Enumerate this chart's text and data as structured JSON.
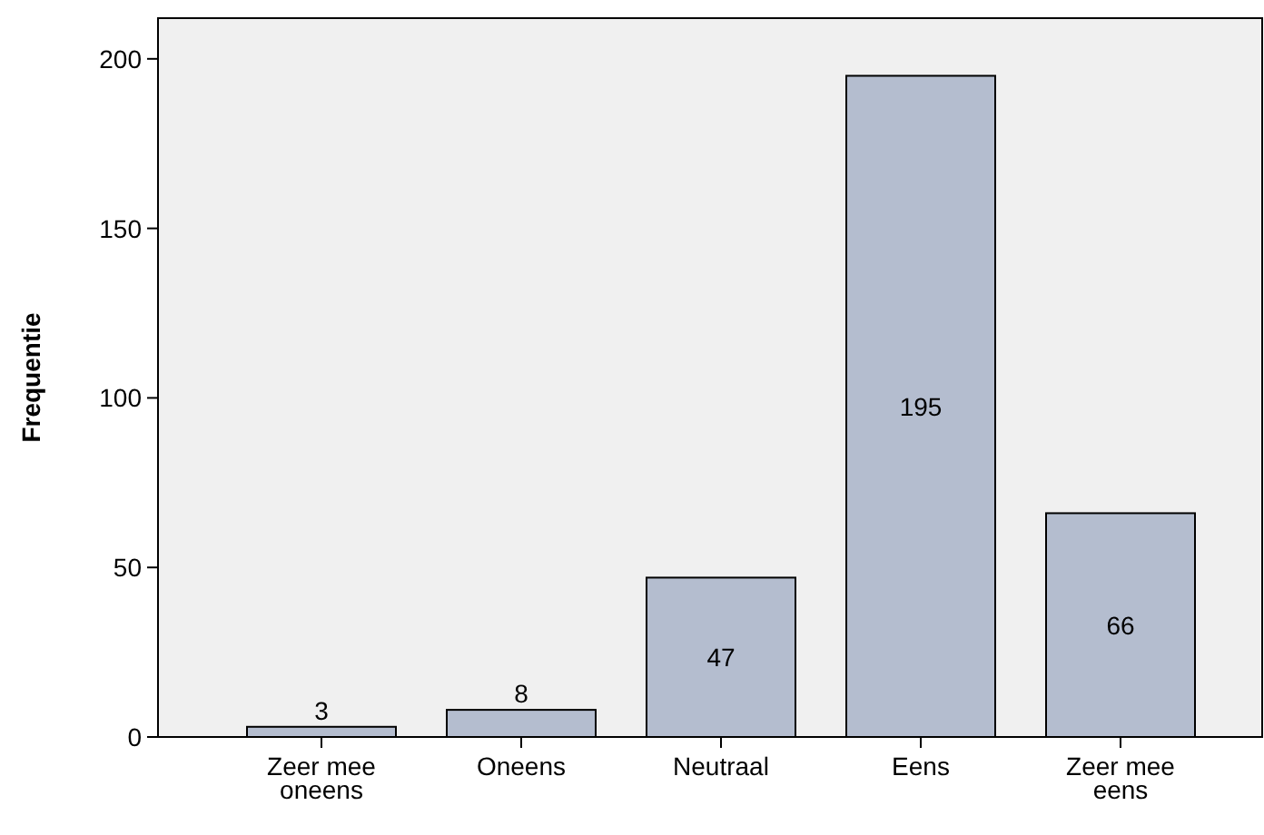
{
  "chart_data": {
    "type": "bar",
    "ylabel": "Frequentie",
    "categories": [
      "Zeer mee oneens",
      "Oneens",
      "Neutraal",
      "Eens",
      "Zeer mee eens"
    ],
    "values": [
      3,
      8,
      47,
      195,
      66
    ],
    "color": "#b4bdcf",
    "ylim": [
      0,
      212
    ],
    "yticks": [
      0,
      50,
      100,
      150,
      200
    ],
    "data_labels": true
  }
}
